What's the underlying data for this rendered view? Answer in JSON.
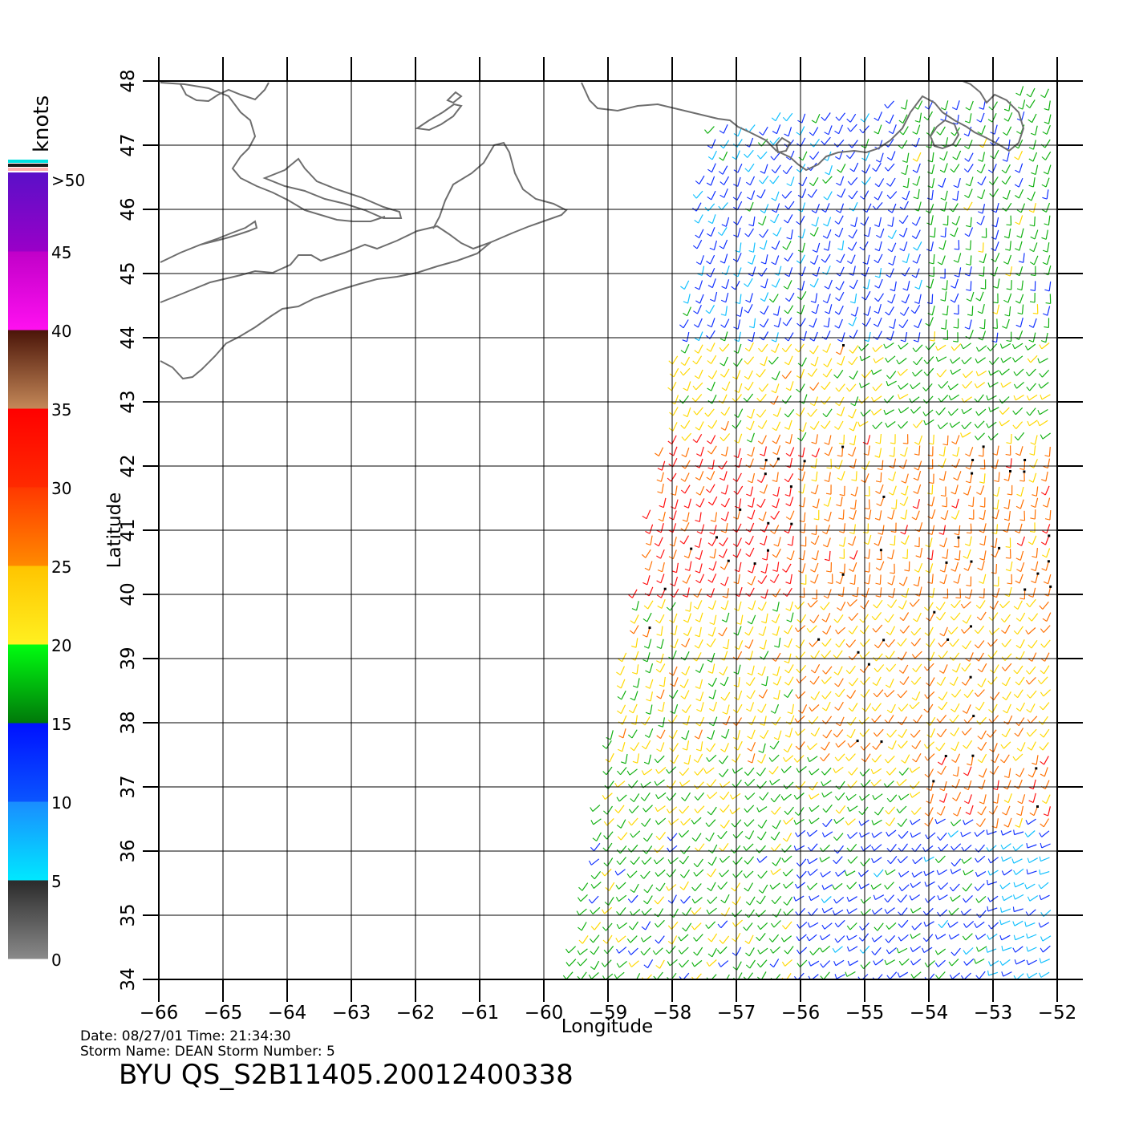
{
  "colorbar": {
    "unit": "knots",
    "labels": [
      "0",
      "5",
      "10",
      "15",
      "20",
      "25",
      "30",
      "35",
      "40",
      "45",
      ">50"
    ],
    "bands": [
      {
        "from": 0,
        "to": 5,
        "top": "#2a2a2a",
        "bottom": "#8a8a8a"
      },
      {
        "from": 5,
        "to": 10,
        "top": "#1a8cff",
        "bottom": "#00e8ff"
      },
      {
        "from": 10,
        "to": 15,
        "top": "#0010ff",
        "bottom": "#0a55ff"
      },
      {
        "from": 15,
        "to": 20,
        "top": "#00ff10",
        "bottom": "#00780a"
      },
      {
        "from": 20,
        "to": 25,
        "top": "#ffc400",
        "bottom": "#fff020"
      },
      {
        "from": 25,
        "to": 30,
        "top": "#ff3800",
        "bottom": "#ff8a00"
      },
      {
        "from": 30,
        "to": 35,
        "top": "#ff0000",
        "bottom": "#ff2a00"
      },
      {
        "from": 35,
        "to": 40,
        "top": "#4a1408",
        "bottom": "#c48858"
      },
      {
        "from": 40,
        "to": 45,
        "top": "#c000c8",
        "bottom": "#ff10f0"
      },
      {
        "from": 45,
        "to": 50,
        "top": "#5a10c8",
        "bottom": "#9a00c8"
      }
    ],
    "cap_colors": [
      "#00e0e0",
      "#1a1a1a",
      "#ffb0b0"
    ]
  },
  "map": {
    "lon_range": [
      -66,
      -52
    ],
    "lat_range": [
      34,
      48
    ],
    "lon_ticks": [
      "-66",
      "-65",
      "-64",
      "-63",
      "-62",
      "-61",
      "-60",
      "-59",
      "-58",
      "-57",
      "-56",
      "-55",
      "-54",
      "-53",
      "-52"
    ],
    "lat_ticks": [
      "34",
      "35",
      "36",
      "37",
      "38",
      "39",
      "40",
      "41",
      "42",
      "43",
      "44",
      "45",
      "46",
      "47",
      "48"
    ],
    "xlabel": "Longitude",
    "ylabel": "Latitude",
    "coast_color": "#6e6e6e",
    "grid_color": "#000000"
  },
  "footer": {
    "line1": "Date: 08/27/01   Time: 21:34:30",
    "line2": "Storm  Name: DEAN    Storm  Number: 5",
    "title": "BYU  QS_S2B11405.20012400338"
  },
  "swath": {
    "polygon": [
      [
        -59.6,
        34.0
      ],
      [
        -57.9,
        43.9
      ],
      [
        -57.4,
        47.4
      ],
      [
        -52.0,
        48.0
      ],
      [
        -52.0,
        34.0
      ]
    ],
    "regions": [
      {
        "lat": [
          46.0,
          48.0
        ],
        "lon": [
          -57.6,
          -54.5
        ],
        "speed": 12,
        "dir": 210
      },
      {
        "lat": [
          46.0,
          48.0
        ],
        "lon": [
          -54.5,
          -52.0
        ],
        "speed": 17,
        "dir": 200
      },
      {
        "lat": [
          44.0,
          46.0
        ],
        "lon": [
          -58.2,
          -54.0
        ],
        "speed": 12,
        "dir": 200
      },
      {
        "lat": [
          44.0,
          46.0
        ],
        "lon": [
          -54.0,
          -52.0
        ],
        "speed": 17,
        "dir": 190
      },
      {
        "lat": [
          42.5,
          44.0
        ],
        "lon": [
          -58.5,
          -55.0
        ],
        "speed": 22,
        "dir": 210
      },
      {
        "lat": [
          42.5,
          44.0
        ],
        "lon": [
          -55.0,
          -52.0
        ],
        "speed": 19,
        "dir": 230
      },
      {
        "lat": [
          40.0,
          42.5
        ],
        "lon": [
          -59.0,
          -56.0
        ],
        "speed": 31,
        "dir": 200
      },
      {
        "lat": [
          40.0,
          42.5
        ],
        "lon": [
          -56.0,
          -52.0
        ],
        "speed": 27,
        "dir": 190
      },
      {
        "lat": [
          37.5,
          40.0
        ],
        "lon": [
          -59.5,
          -56.0
        ],
        "speed": 22,
        "dir": 200
      },
      {
        "lat": [
          37.5,
          40.0
        ],
        "lon": [
          -56.0,
          -52.0
        ],
        "speed": 24,
        "dir": 215
      },
      {
        "lat": [
          36.5,
          37.5
        ],
        "lon": [
          -59.8,
          -54.0
        ],
        "speed": 20,
        "dir": 225
      },
      {
        "lat": [
          36.5,
          37.5
        ],
        "lon": [
          -54.0,
          -52.0
        ],
        "speed": 28,
        "dir": 200
      },
      {
        "lat": [
          34.0,
          36.5
        ],
        "lon": [
          -60.0,
          -56.0
        ],
        "speed": 18,
        "dir": 220
      },
      {
        "lat": [
          34.0,
          36.5
        ],
        "lon": [
          -56.0,
          -53.0
        ],
        "speed": 13,
        "dir": 230
      },
      {
        "lat": [
          34.0,
          36.5
        ],
        "lon": [
          -53.0,
          -52.0
        ],
        "speed": 9,
        "dir": 240
      }
    ]
  }
}
